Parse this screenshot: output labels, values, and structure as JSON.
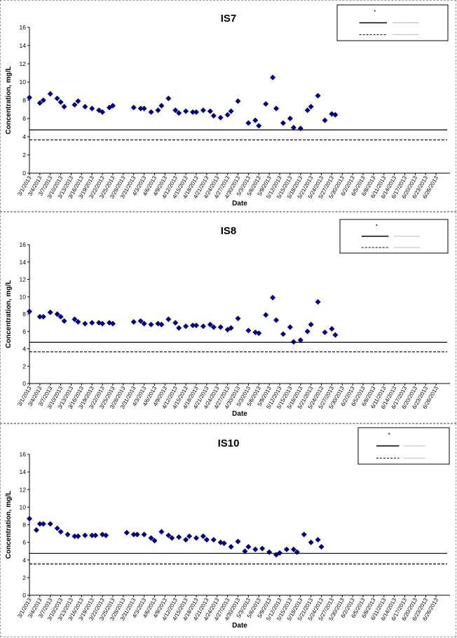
{
  "chart_data": [
    {
      "type": "scatter",
      "title": "IS7",
      "xlabel": "Date",
      "ylabel": "Concentration, mg/L",
      "ylim": [
        0,
        16
      ],
      "yticks": [
        0,
        2,
        4,
        6,
        8,
        10,
        12,
        14,
        16
      ],
      "xlim": [
        "3/1/2013",
        "6/30/2013"
      ],
      "xticks": [
        "3/1/2013",
        "3/4/2013",
        "3/7/2013",
        "3/10/2013",
        "3/13/2013",
        "3/16/2013",
        "3/19/2013",
        "3/22/2013",
        "3/25/2013",
        "3/28/2013",
        "3/31/2013",
        "4/3/2013",
        "4/6/2013",
        "4/9/2013",
        "4/12/2013",
        "4/15/2013",
        "4/18/2013",
        "4/21/2013",
        "4/24/2013",
        "4/27/2013",
        "4/30/2013",
        "5/3/2013",
        "5/6/2013",
        "5/9/2013",
        "5/12/2013",
        "5/15/2013",
        "5/18/2013",
        "5/21/2013",
        "5/24/2013",
        "5/27/2013",
        "5/30/2013",
        "6/2/2013",
        "6/5/2013",
        "6/8/2013",
        "6/11/2013",
        "6/14/2013",
        "6/17/2013",
        "6/20/2013",
        "6/23/2013",
        "6/26/2013"
      ],
      "grid": false,
      "legend_position": "top-right",
      "series": [
        {
          "kind": "marker",
          "color": "#000080",
          "points": [
            [
              "3/1/2013",
              8.3
            ],
            [
              "3/4/2013",
              7.7
            ],
            [
              "3/5/2013",
              8.0
            ],
            [
              "3/7/2013",
              8.7
            ],
            [
              "3/9/2013",
              8.2
            ],
            [
              "3/10/2013",
              7.8
            ],
            [
              "3/11/2013",
              7.3
            ],
            [
              "3/14/2013",
              7.5
            ],
            [
              "3/15/2013",
              7.9
            ],
            [
              "3/17/2013",
              7.3
            ],
            [
              "3/19/2013",
              7.1
            ],
            [
              "3/21/2013",
              6.9
            ],
            [
              "3/22/2013",
              6.7
            ],
            [
              "3/24/2013",
              7.2
            ],
            [
              "3/25/2013",
              7.4
            ],
            [
              "3/31/2013",
              7.2
            ],
            [
              "4/2/2013",
              7.1
            ],
            [
              "4/3/2013",
              7.1
            ],
            [
              "4/5/2013",
              6.7
            ],
            [
              "4/7/2013",
              6.9
            ],
            [
              "4/8/2013",
              7.4
            ],
            [
              "4/10/2013",
              8.2
            ],
            [
              "4/12/2013",
              6.9
            ],
            [
              "4/13/2013",
              6.6
            ],
            [
              "4/15/2013",
              6.8
            ],
            [
              "4/17/2013",
              6.7
            ],
            [
              "4/18/2013",
              6.7
            ],
            [
              "4/20/2013",
              6.9
            ],
            [
              "4/22/2013",
              6.8
            ],
            [
              "4/23/2013",
              6.3
            ],
            [
              "4/25/2013",
              6.1
            ],
            [
              "4/27/2013",
              6.4
            ],
            [
              "4/28/2013",
              6.8
            ],
            [
              "4/30/2013",
              7.9
            ],
            [
              "5/3/2013",
              5.5
            ],
            [
              "5/5/2013",
              5.8
            ],
            [
              "5/6/2013",
              5.2
            ],
            [
              "5/8/2013",
              7.6
            ],
            [
              "5/10/2013",
              10.5
            ],
            [
              "5/11/2013",
              7.1
            ],
            [
              "5/13/2013",
              5.5
            ],
            [
              "5/15/2013",
              6.0
            ],
            [
              "5/16/2013",
              5.0
            ],
            [
              "5/18/2013",
              4.9
            ],
            [
              "5/20/2013",
              6.9
            ],
            [
              "5/21/2013",
              7.3
            ],
            [
              "5/23/2013",
              8.5
            ],
            [
              "5/25/2013",
              5.8
            ],
            [
              "5/27/2013",
              6.5
            ],
            [
              "5/28/2013",
              6.4
            ]
          ]
        },
        {
          "kind": "line",
          "style": "solid",
          "color": "#000000",
          "value": 4.75
        },
        {
          "kind": "line",
          "style": "dashed",
          "color": "#000000",
          "value": 3.65
        }
      ]
    },
    {
      "type": "scatter",
      "title": "IS8",
      "xlabel": "Date",
      "ylabel": "Concentration, mg/L",
      "ylim": [
        0,
        16
      ],
      "yticks": [
        0,
        2,
        4,
        6,
        8,
        10,
        12,
        14,
        16
      ],
      "xlim": [
        "3/1/2013",
        "6/30/2013"
      ],
      "xticks": [
        "3/1/2013",
        "3/4/2013",
        "3/7/2013",
        "3/10/2013",
        "3/13/2013",
        "3/16/2013",
        "3/19/2013",
        "3/22/2013",
        "3/25/2013",
        "3/28/2013",
        "3/31/2013",
        "4/3/2013",
        "4/6/2013",
        "4/9/2013",
        "4/12/2013",
        "4/15/2013",
        "4/18/2013",
        "4/21/2013",
        "4/24/2013",
        "4/27/2013",
        "4/30/2013",
        "5/3/2013",
        "5/6/2013",
        "5/9/2013",
        "5/12/2013",
        "5/15/2013",
        "5/18/2013",
        "5/21/2013",
        "5/24/2013",
        "5/27/2013",
        "5/30/2013",
        "6/2/2013",
        "6/5/2013",
        "6/8/2013",
        "6/11/2013",
        "6/14/2013",
        "6/17/2013",
        "6/20/2013",
        "6/23/2013",
        "6/26/2013"
      ],
      "grid": false,
      "legend_position": "top-right",
      "series": [
        {
          "kind": "marker",
          "color": "#000080",
          "points": [
            [
              "3/1/2013",
              8.3
            ],
            [
              "3/4/2013",
              7.7
            ],
            [
              "3/5/2013",
              7.7
            ],
            [
              "3/7/2013",
              8.2
            ],
            [
              "3/9/2013",
              8.0
            ],
            [
              "3/10/2013",
              7.7
            ],
            [
              "3/11/2013",
              7.2
            ],
            [
              "3/14/2013",
              7.4
            ],
            [
              "3/15/2013",
              7.1
            ],
            [
              "3/17/2013",
              6.9
            ],
            [
              "3/19/2013",
              7.0
            ],
            [
              "3/21/2013",
              7.0
            ],
            [
              "3/22/2013",
              6.9
            ],
            [
              "3/24/2013",
              7.0
            ],
            [
              "3/25/2013",
              6.9
            ],
            [
              "3/31/2013",
              7.1
            ],
            [
              "4/2/2013",
              7.2
            ],
            [
              "4/3/2013",
              6.9
            ],
            [
              "4/5/2013",
              6.8
            ],
            [
              "4/7/2013",
              6.9
            ],
            [
              "4/8/2013",
              6.8
            ],
            [
              "4/10/2013",
              7.4
            ],
            [
              "4/12/2013",
              7.0
            ],
            [
              "4/13/2013",
              6.4
            ],
            [
              "4/15/2013",
              6.6
            ],
            [
              "4/17/2013",
              6.7
            ],
            [
              "4/18/2013",
              6.7
            ],
            [
              "4/20/2013",
              6.6
            ],
            [
              "4/22/2013",
              6.8
            ],
            [
              "4/23/2013",
              6.5
            ],
            [
              "4/25/2013",
              6.5
            ],
            [
              "4/27/2013",
              6.2
            ],
            [
              "4/28/2013",
              6.4
            ],
            [
              "4/30/2013",
              7.5
            ],
            [
              "5/3/2013",
              6.1
            ],
            [
              "5/5/2013",
              5.9
            ],
            [
              "5/6/2013",
              5.8
            ],
            [
              "5/8/2013",
              7.9
            ],
            [
              "5/10/2013",
              9.9
            ],
            [
              "5/11/2013",
              7.3
            ],
            [
              "5/13/2013",
              5.7
            ],
            [
              "5/15/2013",
              6.5
            ],
            [
              "5/16/2013",
              4.8
            ],
            [
              "5/18/2013",
              5.0
            ],
            [
              "5/20/2013",
              6.0
            ],
            [
              "5/21/2013",
              6.8
            ],
            [
              "5/23/2013",
              9.4
            ],
            [
              "5/25/2013",
              5.9
            ],
            [
              "5/27/2013",
              6.3
            ],
            [
              "5/28/2013",
              5.6
            ]
          ]
        },
        {
          "kind": "line",
          "style": "solid",
          "color": "#000000",
          "value": 4.75
        },
        {
          "kind": "line",
          "style": "dashed",
          "color": "#000000",
          "value": 3.65
        }
      ]
    },
    {
      "type": "scatter",
      "title": "IS10",
      "xlabel": "Date",
      "ylabel": "Concentration, mg/L",
      "ylim": [
        0,
        16
      ],
      "yticks": [
        0,
        2,
        4,
        6,
        8,
        10,
        12,
        14,
        16
      ],
      "xlim": [
        "3/1/2013",
        "6/30/2013"
      ],
      "xticks": [
        "3/1/2013",
        "3/4/2013",
        "3/7/2013",
        "3/10/2013",
        "3/13/2013",
        "3/16/2013",
        "3/19/2013",
        "3/22/2013",
        "3/25/2013",
        "3/28/2013",
        "3/31/2013",
        "4/3/2013",
        "4/6/2013",
        "4/9/2013",
        "4/12/2013",
        "4/15/2013",
        "4/18/2013",
        "4/21/2013",
        "4/24/2013",
        "4/27/2013",
        "4/30/2013",
        "5/3/2013",
        "5/6/2013",
        "5/9/2013",
        "5/12/2013",
        "5/15/2013",
        "5/18/2013",
        "5/21/2013",
        "5/24/2013",
        "5/27/2013",
        "5/30/2013",
        "6/2/2013",
        "6/5/2013",
        "6/8/2013",
        "6/11/2013",
        "6/14/2013",
        "6/17/2013",
        "6/20/2013",
        "6/23/2013",
        "6/26/2013"
      ],
      "grid": false,
      "legend_position": "top-right",
      "series": [
        {
          "kind": "marker",
          "color": "#000080",
          "points": [
            [
              "3/1/2013",
              8.7
            ],
            [
              "3/3/2013",
              7.4
            ],
            [
              "3/4/2013",
              8.1
            ],
            [
              "3/5/2013",
              8.1
            ],
            [
              "3/7/2013",
              8.1
            ],
            [
              "3/9/2013",
              7.6
            ],
            [
              "3/10/2013",
              7.2
            ],
            [
              "3/12/2013",
              6.9
            ],
            [
              "3/14/2013",
              6.7
            ],
            [
              "3/15/2013",
              6.7
            ],
            [
              "3/17/2013",
              6.8
            ],
            [
              "3/19/2013",
              6.8
            ],
            [
              "3/20/2013",
              6.8
            ],
            [
              "3/22/2013",
              6.9
            ],
            [
              "3/23/2013",
              6.8
            ],
            [
              "3/29/2013",
              7.1
            ],
            [
              "3/31/2013",
              6.9
            ],
            [
              "4/1/2013",
              6.9
            ],
            [
              "4/3/2013",
              6.9
            ],
            [
              "4/5/2013",
              6.5
            ],
            [
              "4/6/2013",
              6.2
            ],
            [
              "4/8/2013",
              7.2
            ],
            [
              "4/10/2013",
              6.8
            ],
            [
              "4/11/2013",
              6.5
            ],
            [
              "4/13/2013",
              6.6
            ],
            [
              "4/15/2013",
              6.3
            ],
            [
              "4/16/2013",
              6.7
            ],
            [
              "4/18/2013",
              6.5
            ],
            [
              "4/20/2013",
              6.7
            ],
            [
              "4/21/2013",
              6.3
            ],
            [
              "4/23/2013",
              6.3
            ],
            [
              "4/25/2013",
              6.0
            ],
            [
              "4/26/2013",
              5.9
            ],
            [
              "4/28/2013",
              5.5
            ],
            [
              "4/30/2013",
              6.1
            ],
            [
              "5/2/2013",
              5.0
            ],
            [
              "5/3/2013",
              5.5
            ],
            [
              "5/5/2013",
              5.2
            ],
            [
              "5/7/2013",
              5.3
            ],
            [
              "5/9/2013",
              4.9
            ],
            [
              "5/11/2013",
              4.6
            ],
            [
              "5/12/2013",
              4.8
            ],
            [
              "5/14/2013",
              5.2
            ],
            [
              "5/16/2013",
              5.2
            ],
            [
              "5/17/2013",
              4.9
            ],
            [
              "5/19/2013",
              6.9
            ],
            [
              "5/21/2013",
              6.0
            ],
            [
              "5/23/2013",
              6.3
            ],
            [
              "5/24/2013",
              5.5
            ]
          ]
        },
        {
          "kind": "line",
          "style": "solid",
          "color": "#000000",
          "value": 4.75
        },
        {
          "kind": "line",
          "style": "dashed",
          "color": "#000000",
          "value": 3.55
        }
      ]
    }
  ]
}
